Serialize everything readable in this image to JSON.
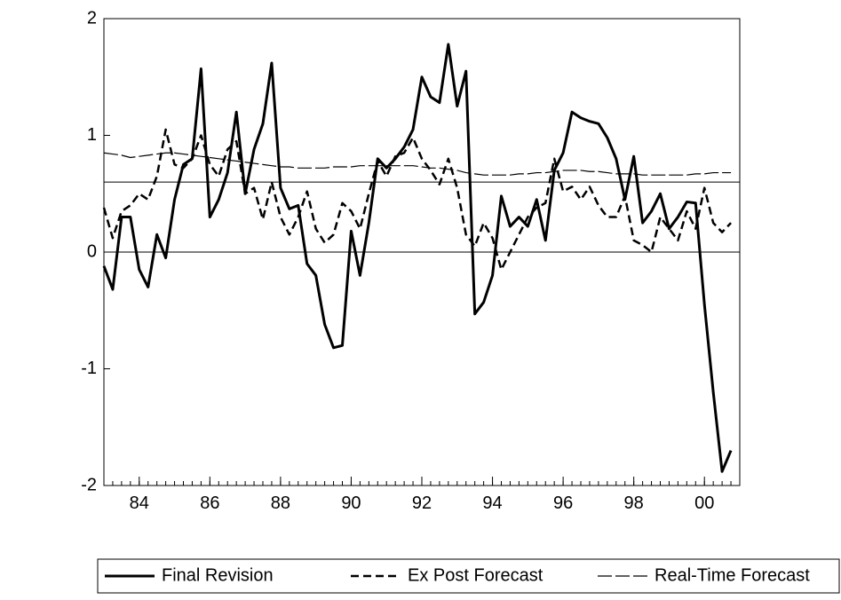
{
  "chart_data": {
    "type": "line",
    "x": [
      1983,
      1983.25,
      1983.5,
      1983.75,
      1984,
      1984.25,
      1984.5,
      1984.75,
      1985,
      1985.25,
      1985.5,
      1985.75,
      1986,
      1986.25,
      1986.5,
      1986.75,
      1987,
      1987.25,
      1987.5,
      1987.75,
      1988,
      1988.25,
      1988.5,
      1988.75,
      1989,
      1989.25,
      1989.5,
      1989.75,
      1990,
      1990.25,
      1990.5,
      1990.75,
      1991,
      1991.25,
      1991.5,
      1991.75,
      1992,
      1992.25,
      1992.5,
      1992.75,
      1993,
      1993.25,
      1993.5,
      1993.75,
      1994,
      1994.25,
      1994.5,
      1994.75,
      1995,
      1995.25,
      1995.5,
      1995.75,
      1996,
      1996.25,
      1996.5,
      1996.75,
      1997,
      1997.25,
      1997.5,
      1997.75,
      1998,
      1998.25,
      1998.5,
      1998.75,
      1999,
      1999.25,
      1999.5,
      1999.75,
      2000,
      2000.25,
      2000.5,
      2000.75
    ],
    "series": [
      {
        "name": "Final Revision",
        "color": "#000000",
        "line_style": "solid",
        "values": [
          -0.12,
          -0.32,
          0.3,
          0.3,
          -0.15,
          -0.3,
          0.15,
          -0.05,
          0.45,
          0.75,
          0.8,
          1.57,
          0.3,
          0.45,
          0.68,
          1.2,
          0.5,
          0.88,
          1.1,
          1.62,
          0.55,
          0.37,
          0.4,
          -0.1,
          -0.2,
          -0.62,
          -0.82,
          -0.8,
          0.18,
          -0.2,
          0.25,
          0.8,
          0.72,
          0.8,
          0.9,
          1.05,
          1.5,
          1.33,
          1.28,
          1.78,
          1.25,
          1.55,
          -0.53,
          -0.43,
          -0.2,
          0.48,
          0.22,
          0.3,
          0.22,
          0.45,
          0.1,
          0.7,
          0.85,
          1.2,
          1.15,
          1.12,
          1.1,
          0.98,
          0.8,
          0.45,
          0.82,
          0.25,
          0.35,
          0.5,
          0.2,
          0.3,
          0.43,
          0.42,
          -0.45,
          -1.2,
          -1.88,
          -1.7
        ]
      },
      {
        "name": "Ex Post Forecast",
        "color": "#000000",
        "line_style": "dashed",
        "values": [
          0.38,
          0.12,
          0.35,
          0.4,
          0.5,
          0.45,
          0.65,
          1.05,
          0.75,
          0.72,
          0.8,
          1.0,
          0.75,
          0.65,
          0.88,
          0.95,
          0.5,
          0.55,
          0.28,
          0.6,
          0.3,
          0.15,
          0.3,
          0.52,
          0.2,
          0.08,
          0.15,
          0.42,
          0.35,
          0.2,
          0.5,
          0.78,
          0.65,
          0.82,
          0.85,
          0.98,
          0.8,
          0.7,
          0.58,
          0.8,
          0.55,
          0.15,
          0.05,
          0.25,
          0.12,
          -0.15,
          0.0,
          0.15,
          0.3,
          0.38,
          0.42,
          0.8,
          0.52,
          0.56,
          0.45,
          0.56,
          0.4,
          0.3,
          0.3,
          0.48,
          0.1,
          0.06,
          0.0,
          0.3,
          0.2,
          0.1,
          0.35,
          0.2,
          0.55,
          0.25,
          0.17,
          0.25
        ]
      },
      {
        "name": "Real-Time Forecast",
        "color": "#000000",
        "line_style": "long-dash",
        "values": [
          0.85,
          0.84,
          0.83,
          0.81,
          0.82,
          0.83,
          0.84,
          0.85,
          0.85,
          0.84,
          0.83,
          0.82,
          0.81,
          0.8,
          0.79,
          0.78,
          0.77,
          0.76,
          0.75,
          0.74,
          0.73,
          0.73,
          0.72,
          0.72,
          0.72,
          0.72,
          0.73,
          0.73,
          0.73,
          0.74,
          0.74,
          0.74,
          0.74,
          0.74,
          0.74,
          0.74,
          0.73,
          0.72,
          0.72,
          0.71,
          0.7,
          0.68,
          0.67,
          0.66,
          0.66,
          0.66,
          0.66,
          0.67,
          0.67,
          0.68,
          0.68,
          0.69,
          0.7,
          0.7,
          0.7,
          0.69,
          0.69,
          0.68,
          0.67,
          0.67,
          0.67,
          0.66,
          0.66,
          0.66,
          0.66,
          0.66,
          0.66,
          0.67,
          0.67,
          0.68,
          0.68,
          0.68
        ]
      }
    ],
    "xlim": [
      1983,
      2001
    ],
    "xticks": [
      {
        "value": 1984,
        "label": "84"
      },
      {
        "value": 1986,
        "label": "86"
      },
      {
        "value": 1988,
        "label": "88"
      },
      {
        "value": 1990,
        "label": "90"
      },
      {
        "value": 1992,
        "label": "92"
      },
      {
        "value": 1994,
        "label": "94"
      },
      {
        "value": 1996,
        "label": "96"
      },
      {
        "value": 1998,
        "label": "98"
      },
      {
        "value": 2000,
        "label": "00"
      }
    ],
    "ylim": [
      -2,
      2
    ],
    "yticks": [
      -2,
      -1,
      0,
      1,
      2
    ],
    "reference_lines": [
      0,
      0.6
    ],
    "legend": "bottom"
  }
}
